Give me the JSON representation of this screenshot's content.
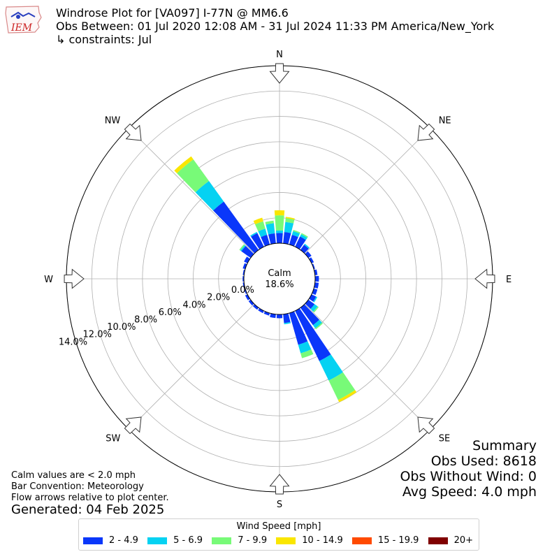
{
  "header": {
    "title": "Windrose Plot for [VA097] I-77N @ MM6.6",
    "subtitle": "Obs Between: 01 Jul 2020 12:08 AM - 31 Jul 2024 11:33 PM America/New_York",
    "constraints": "↳ constraints: Jul",
    "logo_text": "IEM"
  },
  "chart_data": {
    "type": "windrose",
    "title": "Windrose Plot for [VA097] I-77N @ MM6.6",
    "directions": [
      "N",
      "NE",
      "E",
      "SE",
      "S",
      "SW",
      "W",
      "NW"
    ],
    "bin_width_deg": 10,
    "radial_ticks": [
      "0.0%",
      "2.0%",
      "4.0%",
      "6.0%",
      "8.0%",
      "10.0%",
      "12.0%",
      "14.0%"
    ],
    "radial_max": 14,
    "calm_label": "Calm",
    "calm_value": "18.6%",
    "legend_title": "Wind Speed [mph]",
    "speed_bins": [
      {
        "label": "2 - 4.9",
        "color": "#0a37fa"
      },
      {
        "label": "5 - 6.9",
        "color": "#05d2f2"
      },
      {
        "label": "7 - 9.9",
        "color": "#78fa78"
      },
      {
        "label": "10 - 14.9",
        "color": "#fae600"
      },
      {
        "label": "15 - 19.9",
        "color": "#ff4a00"
      },
      {
        "label": "20+",
        "color": "#800000"
      }
    ],
    "bars": [
      {
        "dir": 0,
        "values": [
          0.8,
          0.2,
          1.2,
          0.4
        ]
      },
      {
        "dir": 10,
        "values": [
          0.9,
          0.8,
          0.3,
          0.1
        ]
      },
      {
        "dir": 20,
        "values": [
          0.8,
          0.3,
          0.1,
          0.0
        ]
      },
      {
        "dir": 30,
        "values": [
          0.9,
          0.2,
          0.1,
          0.0
        ]
      },
      {
        "dir": 40,
        "values": [
          0.5,
          0.1,
          0.0,
          0.0
        ]
      },
      {
        "dir": 50,
        "values": [
          0.3,
          0.0,
          0.0,
          0.0
        ]
      },
      {
        "dir": 60,
        "values": [
          0.2,
          0.0,
          0.0,
          0.0
        ]
      },
      {
        "dir": 70,
        "values": [
          0.1,
          0.0,
          0.0,
          0.0
        ]
      },
      {
        "dir": 80,
        "values": [
          0.2,
          0.0,
          0.0,
          0.0
        ]
      },
      {
        "dir": 90,
        "values": [
          0.3,
          0.0,
          0.0,
          0.0
        ]
      },
      {
        "dir": 100,
        "values": [
          0.3,
          0.0,
          0.0,
          0.0
        ]
      },
      {
        "dir": 110,
        "values": [
          0.3,
          0.0,
          0.0,
          0.0
        ]
      },
      {
        "dir": 120,
        "values": [
          0.4,
          0.1,
          0.0,
          0.0
        ]
      },
      {
        "dir": 130,
        "values": [
          0.6,
          0.3,
          0.1,
          0.0
        ]
      },
      {
        "dir": 140,
        "values": [
          1.7,
          0.3,
          0.1,
          0.0
        ]
      },
      {
        "dir": 150,
        "values": [
          4.4,
          1.7,
          1.7,
          0.2
        ]
      },
      {
        "dir": 160,
        "values": [
          2.6,
          0.7,
          0.4,
          0.0
        ]
      },
      {
        "dir": 170,
        "values": [
          0.7,
          0.1,
          0.0,
          0.0
        ]
      },
      {
        "dir": 180,
        "values": [
          0.3,
          0.0,
          0.0,
          0.0
        ]
      },
      {
        "dir": 190,
        "values": [
          0.3,
          0.0,
          0.0,
          0.0
        ]
      },
      {
        "dir": 200,
        "values": [
          0.2,
          0.0,
          0.0,
          0.0
        ]
      },
      {
        "dir": 210,
        "values": [
          0.2,
          0.0,
          0.0,
          0.0
        ]
      },
      {
        "dir": 220,
        "values": [
          0.2,
          0.0,
          0.0,
          0.0
        ]
      },
      {
        "dir": 230,
        "values": [
          0.2,
          0.0,
          0.0,
          0.0
        ]
      },
      {
        "dir": 240,
        "values": [
          0.2,
          0.0,
          0.0,
          0.0
        ]
      },
      {
        "dir": 250,
        "values": [
          0.1,
          0.0,
          0.0,
          0.0
        ]
      },
      {
        "dir": 260,
        "values": [
          0.1,
          0.0,
          0.0,
          0.0
        ]
      },
      {
        "dir": 270,
        "values": [
          0.1,
          0.0,
          0.0,
          0.0
        ]
      },
      {
        "dir": 280,
        "values": [
          0.1,
          0.0,
          0.0,
          0.0
        ]
      },
      {
        "dir": 290,
        "values": [
          0.2,
          0.0,
          0.0,
          0.0
        ]
      },
      {
        "dir": 300,
        "values": [
          0.3,
          0.0,
          0.0,
          0.0
        ]
      },
      {
        "dir": 310,
        "values": [
          0.9,
          0.1,
          0.1,
          0.0
        ]
      },
      {
        "dir": 320,
        "values": [
          4.7,
          2.0,
          2.1,
          0.3
        ]
      },
      {
        "dir": 330,
        "values": [
          1.2,
          0.1,
          0.0,
          0.0
        ]
      },
      {
        "dir": 340,
        "values": [
          0.8,
          0.5,
          0.6,
          0.3
        ]
      },
      {
        "dir": 350,
        "values": [
          0.8,
          0.8,
          0.2,
          0.0
        ]
      }
    ]
  },
  "summary": {
    "heading": "Summary",
    "obs_used": "Obs Used: 8618",
    "obs_without_wind": "Obs Without Wind: 0",
    "avg_speed": "Avg Speed: 4.0 mph"
  },
  "notes": {
    "calm": "Calm values are < 2.0 mph",
    "convention": "Bar Convention: Meteorology",
    "flow": "Flow arrows relative to plot center.",
    "generated": "Generated: 04 Feb 2025"
  }
}
